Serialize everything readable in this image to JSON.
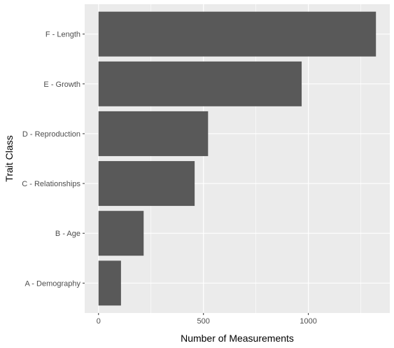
{
  "chart_data": {
    "type": "bar",
    "orientation": "horizontal",
    "categories": [
      "A - Demography",
      "B - Age",
      "C - Relationships",
      "D - Reproduction",
      "E - Growth",
      "F - Length"
    ],
    "values": [
      107,
      215,
      458,
      522,
      968,
      1322
    ],
    "xlabel": "Number of Measurements",
    "ylabel": "Trait Class",
    "xlim": [
      -66,
      1388
    ],
    "xticks": [
      0,
      500,
      1000
    ],
    "grid": true,
    "colors": {
      "panel_bg": "#ebebeb",
      "grid_major": "#ffffff",
      "bar_fill": "#595959",
      "tick_text": "#4d4d4d",
      "tick_mark": "#333333"
    }
  }
}
